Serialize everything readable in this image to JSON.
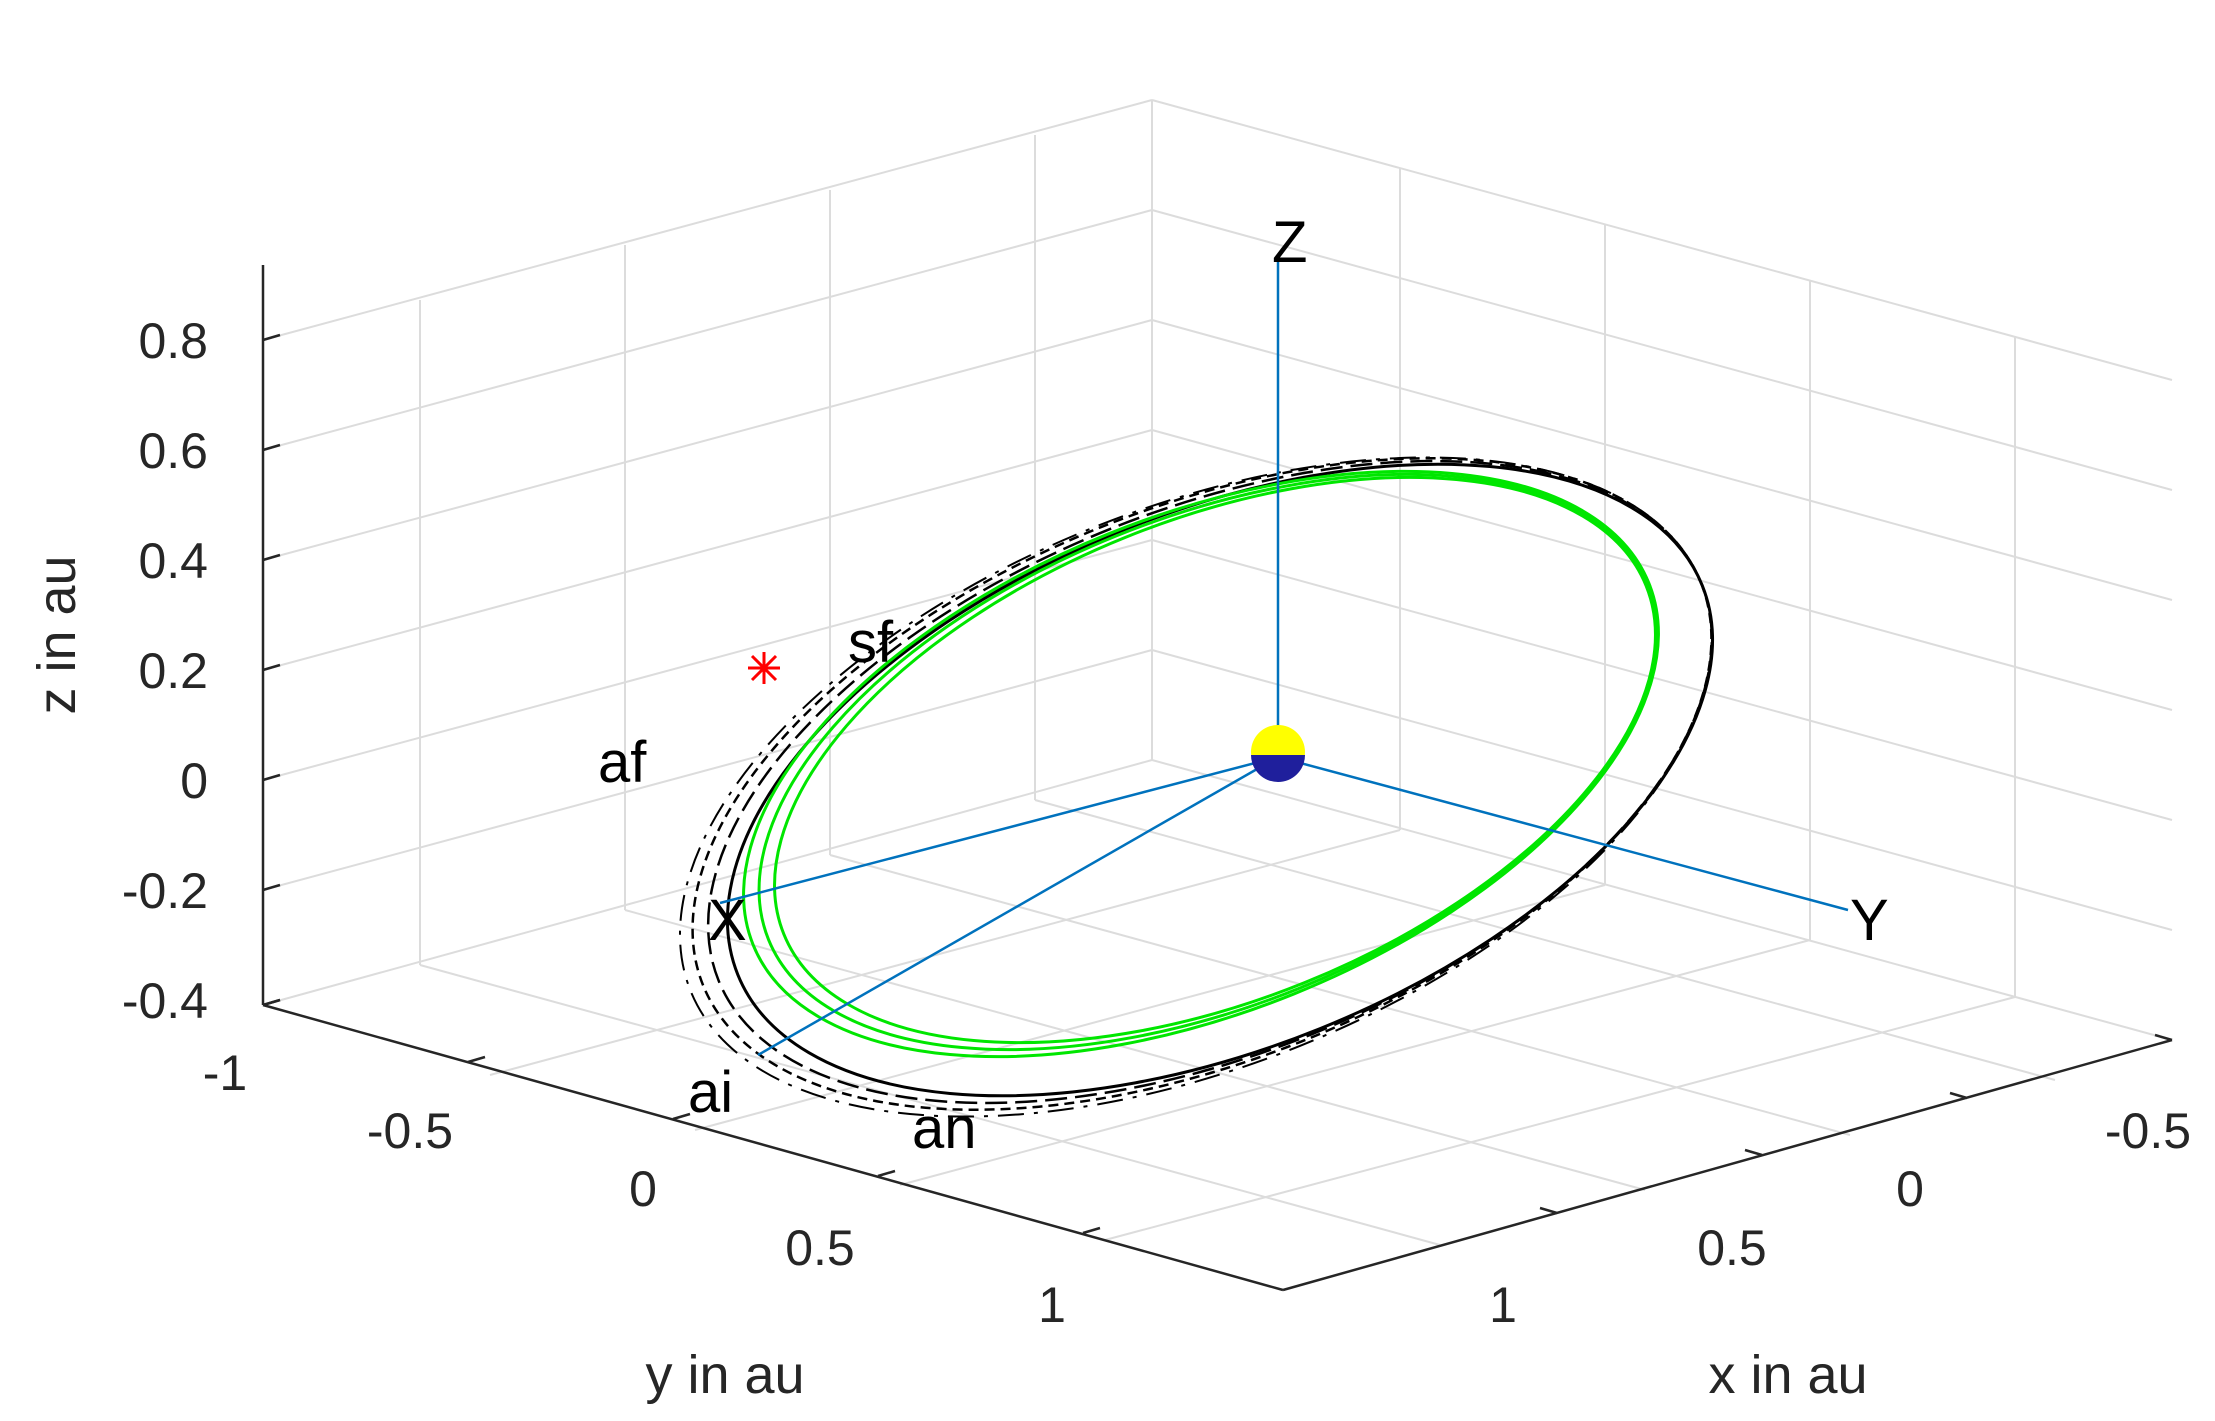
{
  "chart_data": {
    "type": "line",
    "plot": "3d",
    "title": "",
    "xlabel": "x in au",
    "ylabel": "y in au",
    "zlabel": "z in au",
    "x_ticks": [
      "-0.5",
      "0",
      "0.5",
      "1"
    ],
    "y_ticks": [
      "-1",
      "-0.5",
      "0",
      "0.5",
      "1"
    ],
    "z_ticks": [
      "0.8",
      "0.6",
      "0.4",
      "0.2",
      "0",
      "-0.2",
      "-0.4"
    ],
    "xlim": [
      -0.5,
      1.2
    ],
    "ylim": [
      -1.2,
      1.2
    ],
    "zlim": [
      -0.4,
      0.9
    ],
    "grid": true,
    "colors": {
      "outer_orbits": "#000000",
      "inner_orbits": "#00e600",
      "frame_axes": "#0072bd",
      "sun_top": "#ffff00",
      "sun_bottom": "#1f1f9c",
      "marker": "#ff0000",
      "grid": "#dcdcdc",
      "axis": "#262626"
    },
    "frame_axis_labels": [
      "X",
      "Y",
      "Z"
    ],
    "orbit_labels": [
      "sf",
      "af",
      "ai",
      "an"
    ],
    "marker": "*"
  }
}
